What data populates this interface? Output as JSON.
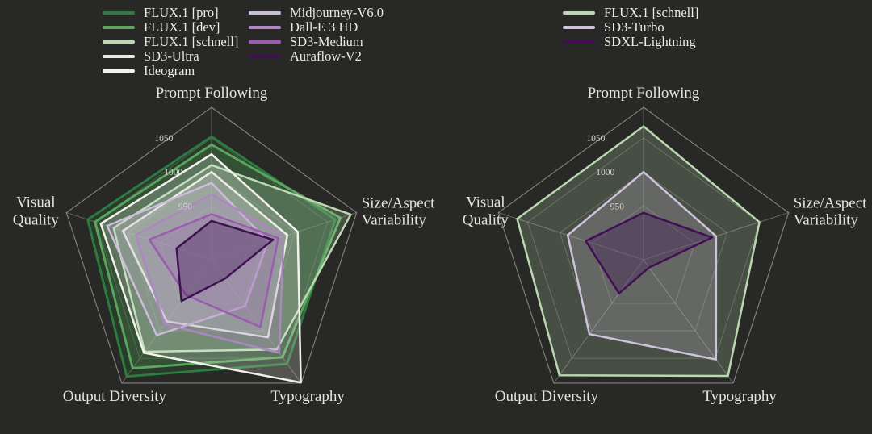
{
  "page": {
    "background": "#282826"
  },
  "chart_data": [
    {
      "type": "radar",
      "title": "",
      "categories": [
        "Prompt Following",
        "Size/Aspect Variability",
        "Typography",
        "Output Diversity",
        "Visual Quality"
      ],
      "category_label_lines": [
        [
          "Prompt Following"
        ],
        [
          "Size/Aspect",
          "Variability"
        ],
        [
          "Typography"
        ],
        [
          "Output Diversity"
        ],
        [
          "Visual",
          "Quality"
        ]
      ],
      "radial_ticks": [
        950,
        1000,
        1050
      ],
      "radial_range": [
        871,
        1095
      ],
      "grid": true,
      "legend_position": "top-left, two columns",
      "series": [
        {
          "name": "FLUX.1 [pro]",
          "color": "#2d7c3f",
          "values": [
            1052,
            1062,
            1060,
            1083,
            1062
          ]
        },
        {
          "name": "FLUX.1 [dev]",
          "color": "#5ba55e",
          "values": [
            1040,
            1070,
            1048,
            1068,
            1051
          ]
        },
        {
          "name": "FLUX.1 [schnell]",
          "color": "#bcd9b4",
          "values": [
            1010,
            1086,
            1034,
            1038,
            1022
          ]
        },
        {
          "name": "SD3-Ultra",
          "color": "#e8ebe4",
          "values": [
            1000,
            988,
            1012,
            983,
            1008
          ]
        },
        {
          "name": "Ideogram",
          "color": "#f3f1ec",
          "values": [
            1026,
            1004,
            1094,
            1040,
            1042
          ]
        },
        {
          "name": "Midjourney-V6.0",
          "color": "#cdbcdb",
          "values": [
            984,
            958,
            955,
            1008,
            1032
          ]
        },
        {
          "name": "Dall-E 3 HD",
          "color": "#ad86c2",
          "values": [
            967,
            982,
            1040,
            988,
            988
          ]
        },
        {
          "name": "SD3-Medium",
          "color": "#9d5ab1",
          "values": [
            938,
            974,
            993,
            935,
            967
          ]
        },
        {
          "name": "Auraflow-V2",
          "color": "#3e1150",
          "values": [
            928,
            966,
            905,
            946,
            925
          ]
        }
      ]
    },
    {
      "type": "radar",
      "title": "",
      "categories": [
        "Prompt Following",
        "Size/Aspect Variability",
        "Typography",
        "Output Diversity",
        "Visual Quality"
      ],
      "category_label_lines": [
        [
          "Prompt Following"
        ],
        [
          "Size/Aspect",
          "Variability"
        ],
        [
          "Typography"
        ],
        [
          "Output Diversity"
        ],
        [
          "Visual",
          "Quality"
        ]
      ],
      "radial_ticks": [
        950,
        1000,
        1050
      ],
      "radial_range": [
        871,
        1095
      ],
      "grid": true,
      "legend_position": "top-left, one column",
      "series": [
        {
          "name": "FLUX.1 [schnell]",
          "color": "#b8d8af",
          "values": [
            1067,
            1050,
            1082,
            1081,
            1066
          ]
        },
        {
          "name": "SD3-Turbo",
          "color": "#cfc2dc",
          "values": [
            1000,
            983,
            1052,
            1006,
            988
          ]
        },
        {
          "name": "SDXL-Lightning",
          "color": "#420f57",
          "values": [
            940,
            977,
            885,
            932,
            960
          ]
        }
      ]
    }
  ]
}
